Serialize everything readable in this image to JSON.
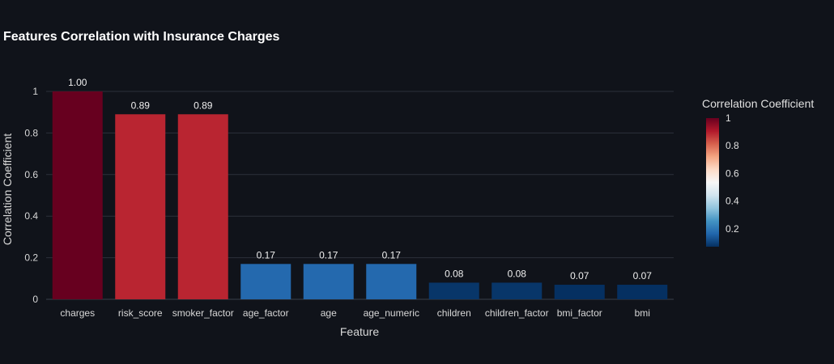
{
  "chart_data": {
    "type": "bar",
    "title": "Features Correlation with Insurance Charges",
    "xlabel": "Feature",
    "ylabel": "Correlation Coefficient",
    "categories": [
      "charges",
      "risk_score",
      "smoker_factor",
      "age_factor",
      "age",
      "age_numeric",
      "children",
      "children_factor",
      "bmi_factor",
      "bmi"
    ],
    "values": [
      1.0,
      0.89,
      0.89,
      0.17,
      0.17,
      0.17,
      0.08,
      0.08,
      0.07,
      0.07
    ],
    "data_labels": [
      "1.00",
      "0.89",
      "0.89",
      "0.17",
      "0.17",
      "0.17",
      "0.08",
      "0.08",
      "0.07",
      "0.07"
    ],
    "ylim": [
      0,
      1
    ],
    "yticks": [
      0,
      0.2,
      0.4,
      0.6,
      0.8,
      1
    ],
    "ytick_labels": [
      "0",
      "0.2",
      "0.4",
      "0.6",
      "0.8",
      "1"
    ],
    "grid": true,
    "colorbar": {
      "title": "Correlation Coefficient",
      "range": [
        0.07,
        1.0
      ],
      "ticks": [
        0.2,
        0.4,
        0.6,
        0.8,
        1
      ],
      "tick_labels": [
        "0.2",
        "0.4",
        "0.6",
        "0.8",
        "1"
      ],
      "colorscale": [
        "#053061",
        "#2166ac",
        "#4393c3",
        "#92c5de",
        "#d1e5f0",
        "#f7f7f7",
        "#fddbc7",
        "#f4a582",
        "#d6604d",
        "#b2182b",
        "#67001f"
      ]
    }
  }
}
